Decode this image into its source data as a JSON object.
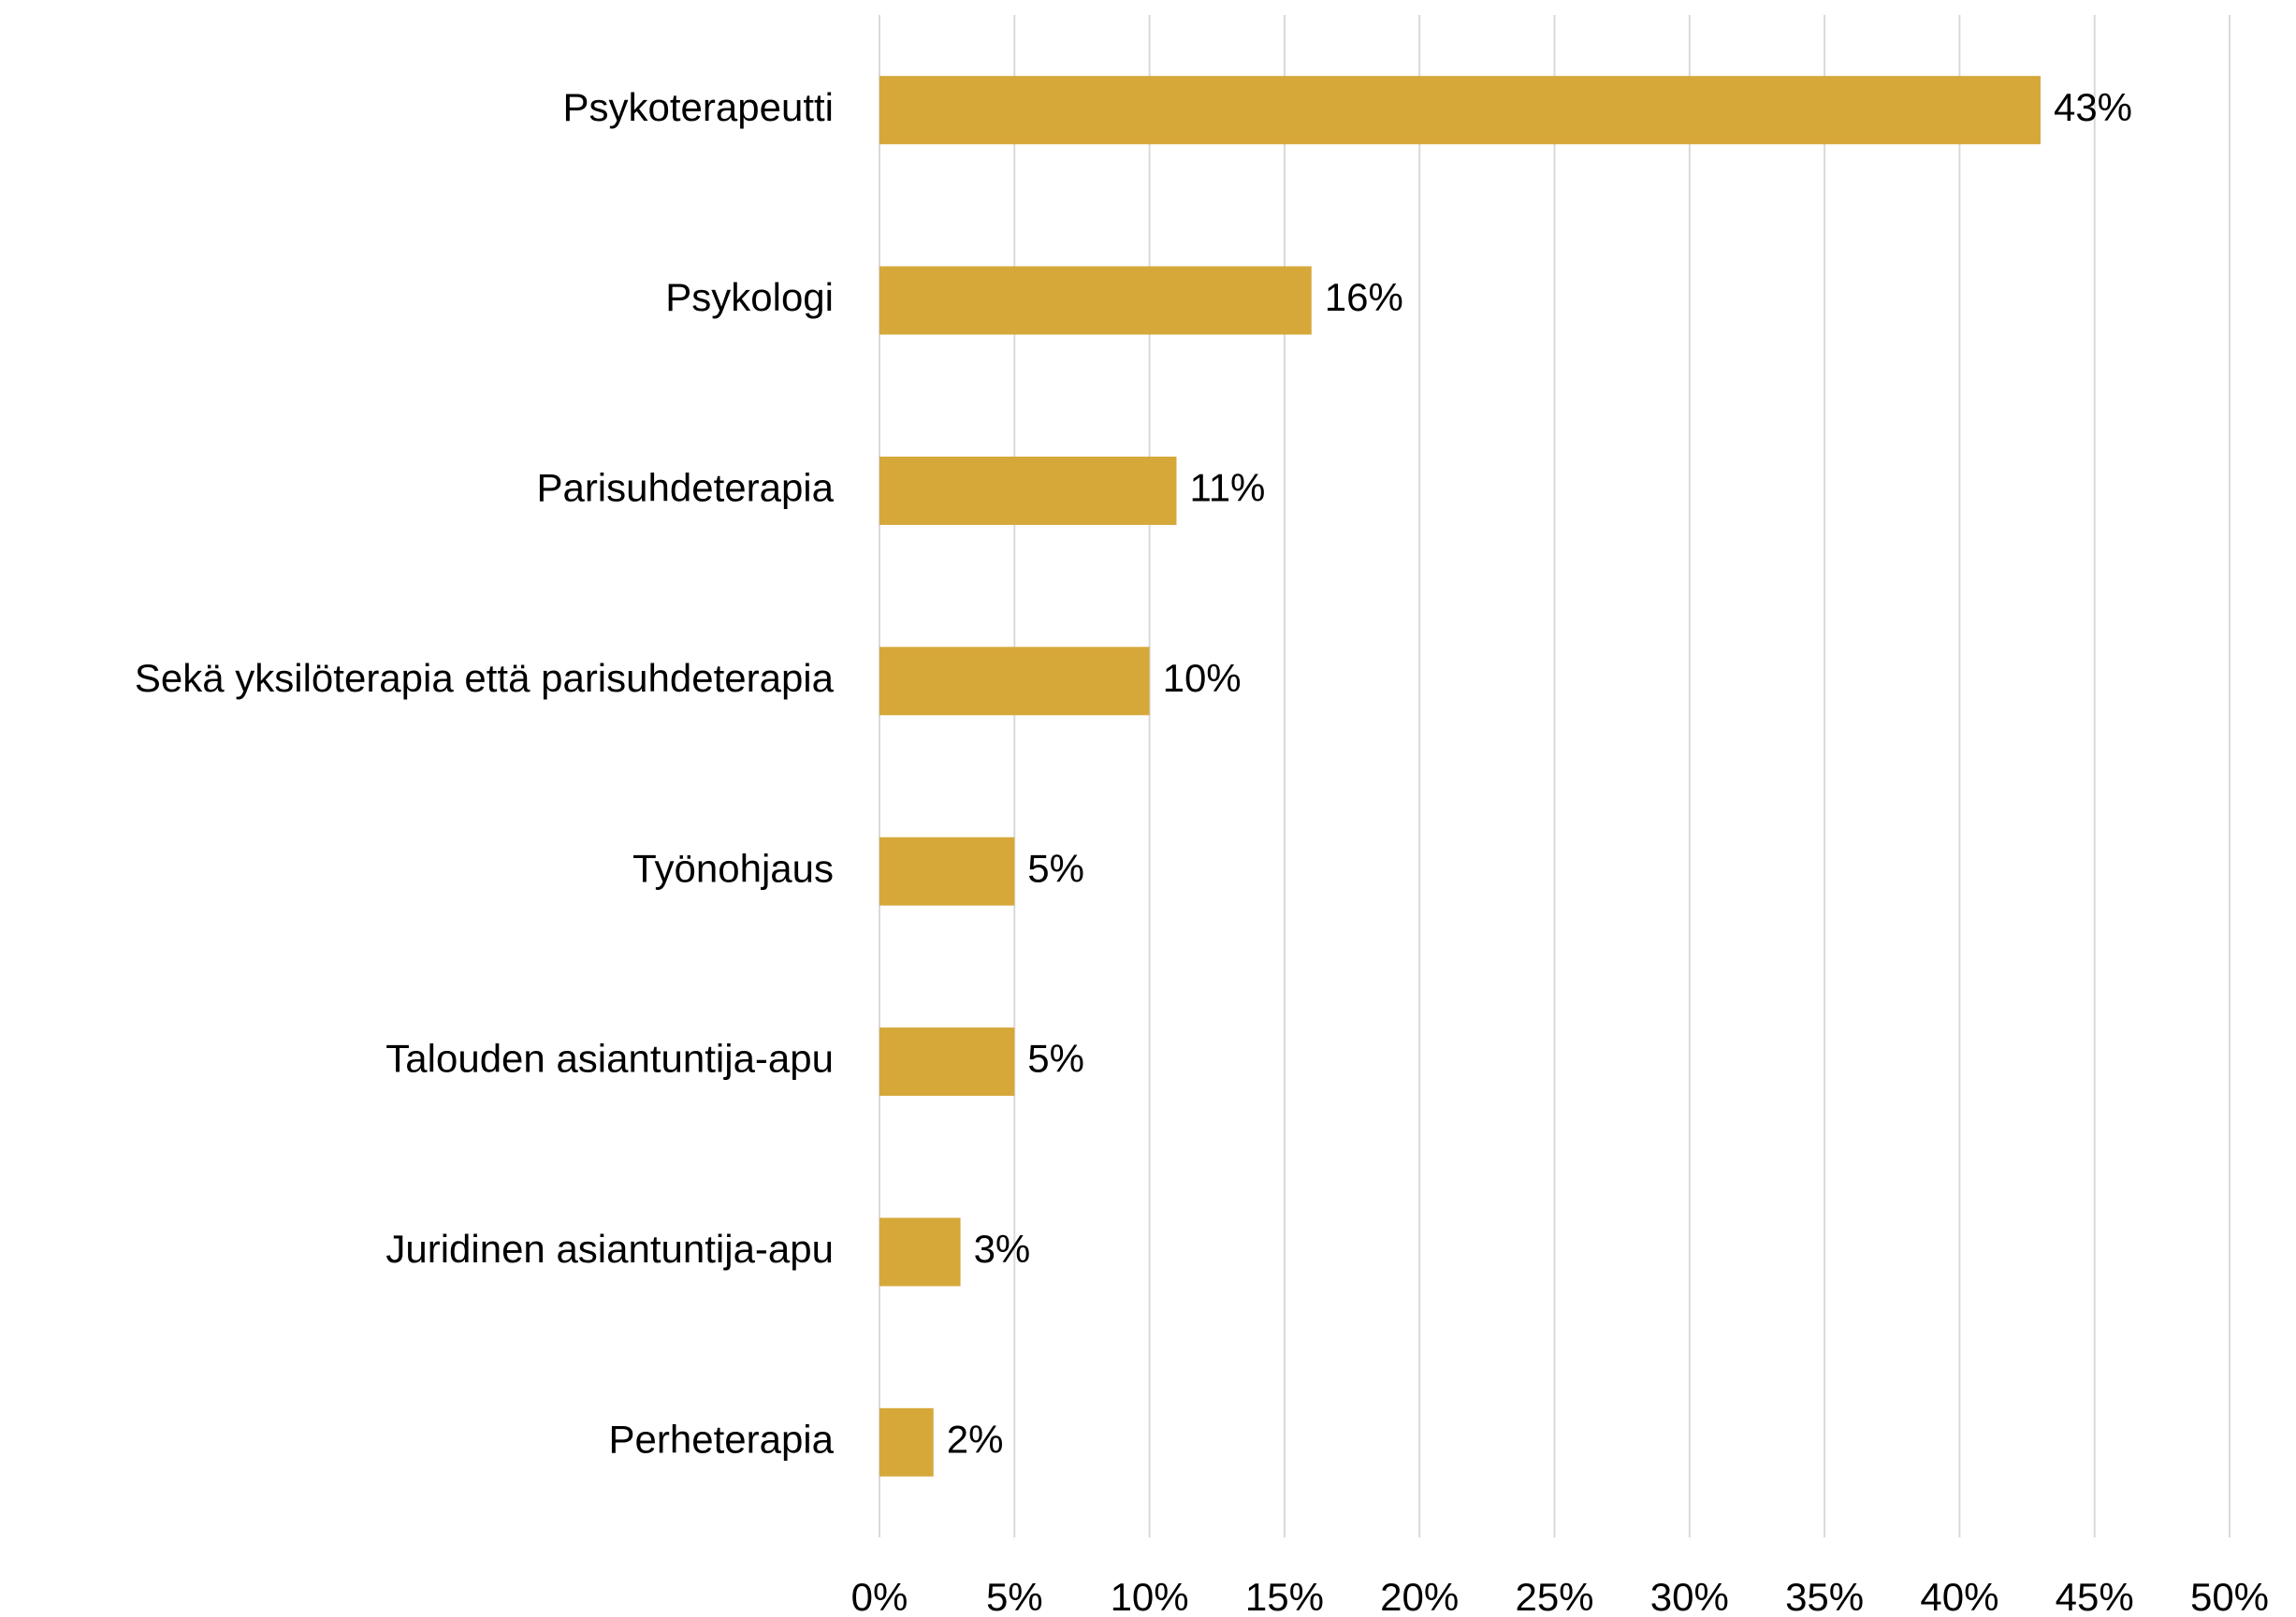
{
  "chart_data": {
    "type": "bar",
    "orientation": "horizontal",
    "categories": [
      "Psykoterapeutti",
      "Psykologi",
      "Parisuhdeterapia",
      "Sekä yksilöterapia että parisuhdeterapia",
      "Työnohjaus",
      "Talouden asiantuntija-apu",
      "Juridinen asiantuntija-apu",
      "Perheterapia"
    ],
    "values": [
      43,
      16,
      11,
      10,
      5,
      5,
      3,
      2
    ],
    "value_labels": [
      "43%",
      "16%",
      "11%",
      "10%",
      "5%",
      "5%",
      "3%",
      "2%"
    ],
    "color": "#d6a83a",
    "xlim": [
      0,
      50
    ],
    "xticks": [
      {
        "value": 0,
        "label": "0%"
      },
      {
        "value": 5,
        "label": "5%"
      },
      {
        "value": 10,
        "label": "10%"
      },
      {
        "value": 15,
        "label": "15%"
      },
      {
        "value": 20,
        "label": "20%"
      },
      {
        "value": 25,
        "label": "25%"
      },
      {
        "value": 30,
        "label": "30%"
      },
      {
        "value": 35,
        "label": "35%"
      },
      {
        "value": 40,
        "label": "40%"
      },
      {
        "value": 45,
        "label": "45%"
      },
      {
        "value": 50,
        "label": "50%"
      }
    ],
    "grid": true
  }
}
